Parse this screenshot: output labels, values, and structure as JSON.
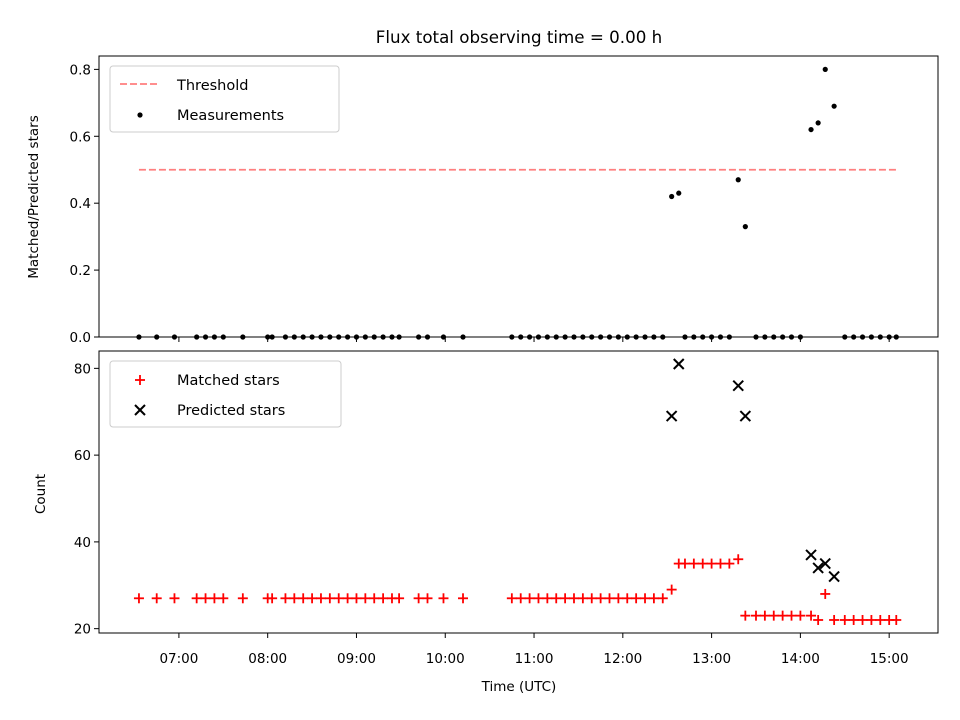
{
  "chart_data": {
    "title": "Flux total observing time = 0.00 h",
    "x_tick_labels": [
      "07:00",
      "08:00",
      "09:00",
      "10:00",
      "11:00",
      "12:00",
      "13:00",
      "14:00",
      "15:00"
    ],
    "x_ticks_hours": [
      7,
      8,
      9,
      10,
      11,
      12,
      13,
      14,
      15
    ],
    "x_range_hours": [
      6.1,
      15.55
    ],
    "xlabel": "Time (UTC)",
    "panels": [
      {
        "type": "scatter",
        "ylabel": "Matched/Predicted stars",
        "ylim": [
          0,
          0.84
        ],
        "y_ticks": [
          0,
          0.2,
          0.4,
          0.6,
          0.8
        ],
        "y_tick_labels": [
          "0.0",
          "0.2",
          "0.4",
          "0.6",
          "0.8"
        ],
        "legend_position": "top-left",
        "threshold": {
          "name": "Threshold",
          "value": 0.5,
          "x_start": 6.55,
          "x_end": 15.08,
          "color": "#ff7f7f"
        },
        "measurements_name": "Measurements",
        "measurements_color": "#000000",
        "measurements_x": [
          6.55,
          6.75,
          6.95,
          7.2,
          7.3,
          7.4,
          7.5,
          7.72,
          8.0,
          8.05,
          8.2,
          8.3,
          8.4,
          8.5,
          8.6,
          8.7,
          8.8,
          8.9,
          9.0,
          9.1,
          9.2,
          9.3,
          9.4,
          9.48,
          9.7,
          9.8,
          9.98,
          10.2,
          10.75,
          10.85,
          10.95,
          11.05,
          11.15,
          11.25,
          11.35,
          11.45,
          11.55,
          11.65,
          11.75,
          11.85,
          11.95,
          12.05,
          12.15,
          12.25,
          12.35,
          12.45,
          12.55,
          12.63,
          12.7,
          12.8,
          12.9,
          13.0,
          13.1,
          13.2,
          13.3,
          13.38,
          13.5,
          13.6,
          13.7,
          13.8,
          13.9,
          14.0,
          14.12,
          14.2,
          14.28,
          14.38,
          14.5,
          14.6,
          14.7,
          14.8,
          14.9,
          15.0,
          15.08
        ],
        "measurements_y": [
          0,
          0,
          0,
          0,
          0,
          0,
          0,
          0,
          0,
          0,
          0,
          0,
          0,
          0,
          0,
          0,
          0,
          0,
          0,
          0,
          0,
          0,
          0,
          0,
          0,
          0,
          0,
          0,
          0,
          0,
          0,
          0,
          0,
          0,
          0,
          0,
          0,
          0,
          0,
          0,
          0,
          0,
          0,
          0,
          0,
          0,
          0.42,
          0.43,
          0,
          0,
          0,
          0,
          0,
          0,
          0.47,
          0.33,
          0,
          0,
          0,
          0,
          0,
          0,
          0.62,
          0.64,
          0.8,
          0.69,
          0,
          0,
          0,
          0,
          0,
          0,
          0
        ]
      },
      {
        "type": "scatter",
        "ylabel": "Count",
        "ylim": [
          19,
          84
        ],
        "y_ticks": [
          20,
          40,
          60,
          80
        ],
        "y_tick_labels": [
          "20",
          "40",
          "60",
          "80"
        ],
        "legend_position": "top-left",
        "series": [
          {
            "name": "Matched stars",
            "marker": "plus",
            "color": "#ff0000",
            "x": [
              6.55,
              6.75,
              6.95,
              7.2,
              7.3,
              7.4,
              7.5,
              7.72,
              8.0,
              8.05,
              8.2,
              8.3,
              8.4,
              8.5,
              8.6,
              8.7,
              8.8,
              8.9,
              9.0,
              9.1,
              9.2,
              9.3,
              9.4,
              9.48,
              9.7,
              9.8,
              9.98,
              10.2,
              10.75,
              10.85,
              10.95,
              11.05,
              11.15,
              11.25,
              11.35,
              11.45,
              11.55,
              11.65,
              11.75,
              11.85,
              11.95,
              12.05,
              12.15,
              12.25,
              12.35,
              12.45,
              12.55,
              12.63,
              12.7,
              12.8,
              12.9,
              13.0,
              13.1,
              13.2,
              13.3,
              13.38,
              13.5,
              13.6,
              13.7,
              13.8,
              13.9,
              14.0,
              14.12,
              14.2,
              14.28,
              14.38,
              14.5,
              14.6,
              14.7,
              14.8,
              14.9,
              15.0,
              15.08
            ],
            "y": [
              27,
              27,
              27,
              27,
              27,
              27,
              27,
              27,
              27,
              27,
              27,
              27,
              27,
              27,
              27,
              27,
              27,
              27,
              27,
              27,
              27,
              27,
              27,
              27,
              27,
              27,
              27,
              27,
              27,
              27,
              27,
              27,
              27,
              27,
              27,
              27,
              27,
              27,
              27,
              27,
              27,
              27,
              27,
              27,
              27,
              27,
              29,
              35,
              35,
              35,
              35,
              35,
              35,
              35,
              36,
              23,
              23,
              23,
              23,
              23,
              23,
              23,
              23,
              22,
              28,
              22,
              22,
              22,
              22,
              22,
              22,
              22,
              22
            ]
          },
          {
            "name": "Predicted stars",
            "marker": "x",
            "color": "#000000",
            "x": [
              12.55,
              12.63,
              13.3,
              13.38,
              14.12,
              14.2,
              14.28,
              14.38
            ],
            "y": [
              69,
              81,
              76,
              69,
              37,
              34,
              35,
              32
            ]
          }
        ]
      }
    ]
  }
}
